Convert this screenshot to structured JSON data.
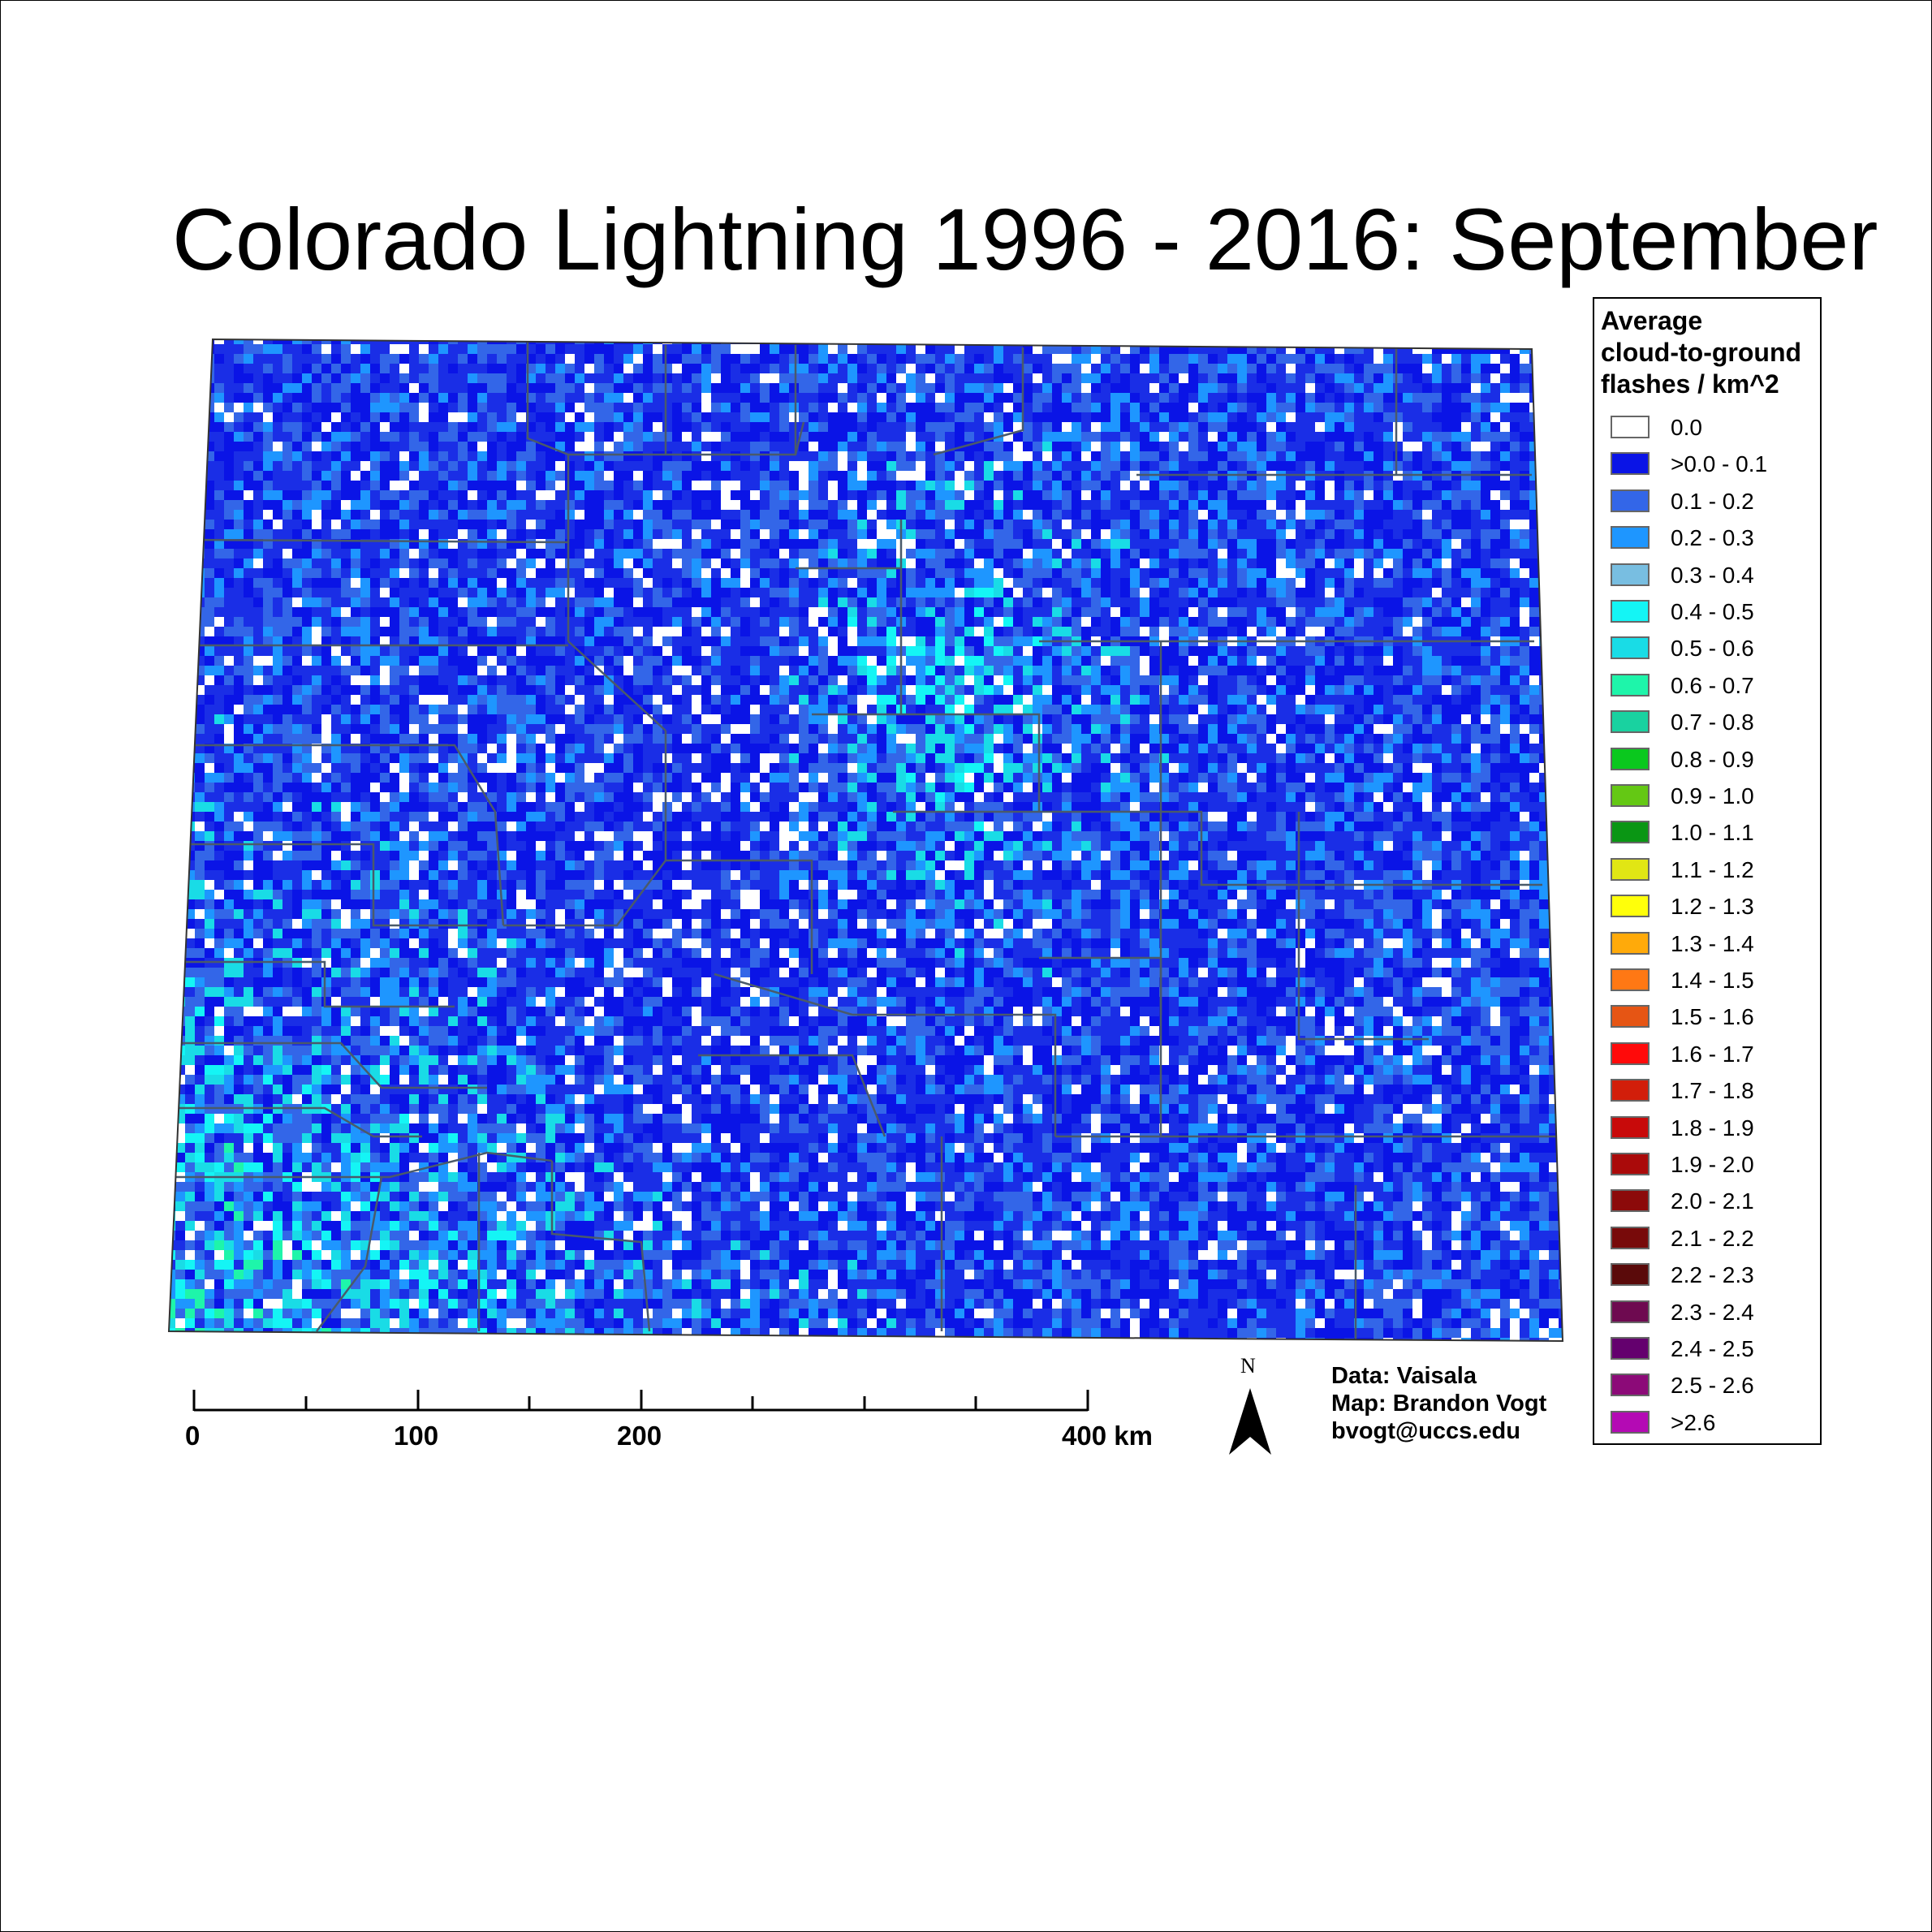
{
  "title": "Colorado Lightning 1996 - 2016:  September",
  "legend": {
    "title_lines": [
      "Average",
      "cloud-to-ground",
      "flashes / km^2"
    ],
    "classes": [
      {
        "label": "0.0",
        "color": "#ffffff"
      },
      {
        "label": ">0.0 - 0.1",
        "color": "#0a14e6"
      },
      {
        "label": "0.1 - 0.2",
        "color": "#3366e8"
      },
      {
        "label": "0.2 - 0.3",
        "color": "#1e96ff"
      },
      {
        "label": "0.3 - 0.4",
        "color": "#78bee1"
      },
      {
        "label": "0.4 - 0.5",
        "color": "#14f5f5"
      },
      {
        "label": "0.5 - 0.6",
        "color": "#19dce6"
      },
      {
        "label": "0.6 - 0.7",
        "color": "#1ef5aa"
      },
      {
        "label": "0.7 - 0.8",
        "color": "#19d2a0"
      },
      {
        "label": "0.8 - 0.9",
        "color": "#0ac81e"
      },
      {
        "label": "0.9 - 1.0",
        "color": "#64c814"
      },
      {
        "label": "1.0 - 1.1",
        "color": "#0a9614"
      },
      {
        "label": "1.1 - 1.2",
        "color": "#e1e614"
      },
      {
        "label": "1.2 - 1.3",
        "color": "#ffff0a"
      },
      {
        "label": "1.3 - 1.4",
        "color": "#ffaa0a"
      },
      {
        "label": "1.4 - 1.5",
        "color": "#ff7814"
      },
      {
        "label": "1.5 - 1.6",
        "color": "#e65514"
      },
      {
        "label": "1.6 - 1.7",
        "color": "#ff0a0a"
      },
      {
        "label": "1.7 - 1.8",
        "color": "#d21e0a"
      },
      {
        "label": "1.8 - 1.9",
        "color": "#c80a0a"
      },
      {
        "label": "1.9 - 2.0",
        "color": "#aa0a0a"
      },
      {
        "label": "2.0 - 2.1",
        "color": "#8c0a0a"
      },
      {
        "label": "2.1 - 2.2",
        "color": "#780a0a"
      },
      {
        "label": "2.2 - 2.3",
        "color": "#5a0a0a"
      },
      {
        "label": "2.3 - 2.4",
        "color": "#6e0a50"
      },
      {
        "label": "2.4 - 2.5",
        "color": "#64006e"
      },
      {
        "label": "2.5 - 2.6",
        "color": "#8c0a78"
      },
      {
        "label": ">2.6",
        "color": "#b40ab4"
      }
    ]
  },
  "scale_bar": {
    "labels": [
      {
        "text": "0",
        "km": 0
      },
      {
        "text": "100",
        "km": 100
      },
      {
        "text": "200",
        "km": 200
      },
      {
        "text": "400 km",
        "km": 400
      }
    ]
  },
  "north_arrow": {
    "letter": "N",
    "icon": "north-arrow-icon"
  },
  "credits": [
    "Data: Vaisala",
    "Map: Brandon Vogt",
    "bvogt@uccs.edu"
  ],
  "colors": {
    "county_lines": "#4a5a6a",
    "state_outline": "#333333",
    "dominant_class": "#0a14e6"
  }
}
